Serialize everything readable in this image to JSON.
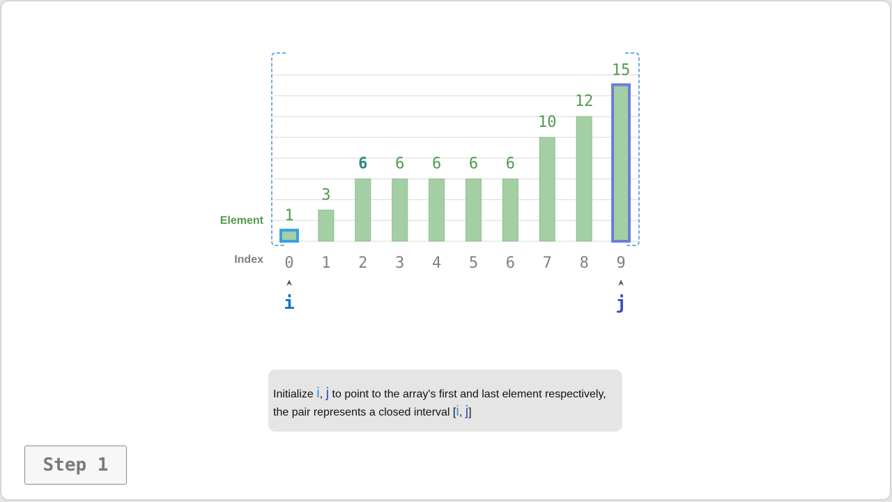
{
  "chart_data": {
    "type": "bar",
    "row_labels": {
      "element": "Element",
      "index": "Index"
    },
    "categories": [
      "0",
      "1",
      "2",
      "3",
      "4",
      "5",
      "6",
      "7",
      "8",
      "9"
    ],
    "values": [
      1,
      3,
      6,
      6,
      6,
      6,
      6,
      10,
      12,
      15
    ],
    "highlighted_value_index": 2,
    "pointers": [
      {
        "name": "i",
        "index": 0
      },
      {
        "name": "j",
        "index": 9
      }
    ],
    "interval": [
      0,
      9
    ],
    "grid": true
  },
  "caption": {
    "line1_prefix": "Initialize",
    "i": "i",
    "sep": ",",
    "j": "j",
    "line1_suffix": "to point to the array's first and last element respectively,",
    "line2_prefix": "the pair represents a closed interval [",
    "line2_suffix": "]"
  },
  "step_button": {
    "label": "Step 1"
  },
  "colors": {
    "bar_fill": "#a4cfa4",
    "bar_stroke": "#8fbe8f",
    "value_label": "#4f9a4f",
    "highlight_value": "#2e8a80",
    "index_label": "#808080",
    "pointer_i": "#1a76c2",
    "pointer_j": "#3a4fc2",
    "interval_bracket": "#3f8fd6",
    "grid": "#d8d8d8"
  }
}
